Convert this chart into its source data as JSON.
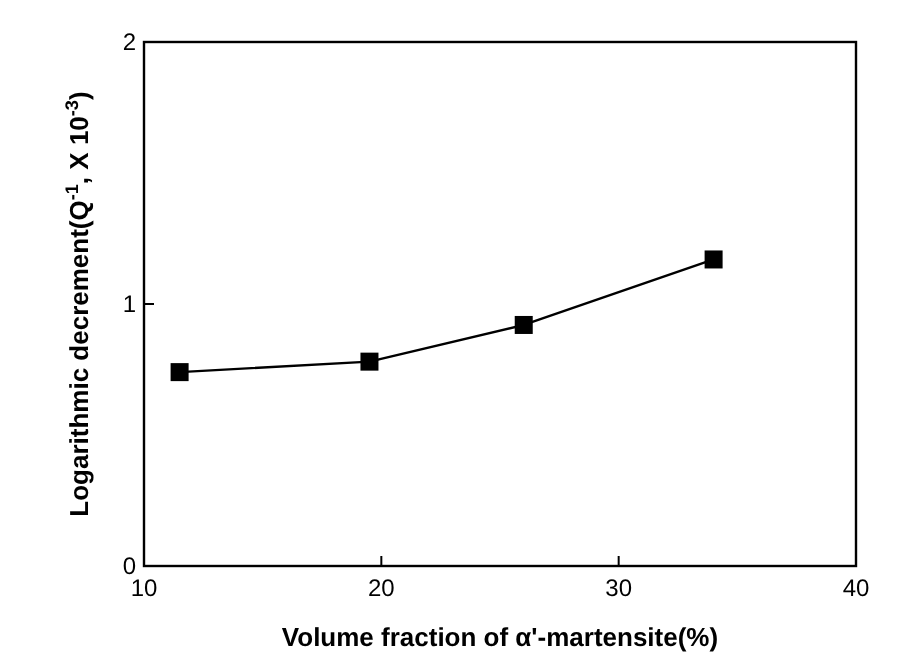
{
  "chart_data": {
    "type": "line",
    "xlabel": "Volume fraction of α'-martensite(%)",
    "ylabel": "Logarithmic decrement(Q$^{-1}$, X 10$^{-3}$)",
    "x": [
      11.5,
      19.5,
      26.0,
      34.0
    ],
    "series": [
      {
        "color": "#000000",
        "values": [
          0.74,
          0.78,
          0.92,
          1.17
        ]
      }
    ],
    "xlim": [
      10,
      40
    ],
    "xticks": [
      10,
      20,
      30,
      40
    ],
    "ylim": [
      0,
      2
    ],
    "yticks": [
      0,
      1,
      2
    ],
    "marker": "square",
    "line_style": "solid",
    "grid": false
  }
}
